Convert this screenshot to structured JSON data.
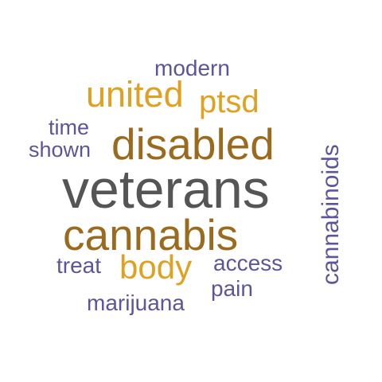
{
  "colors": {
    "grey": "#555555",
    "brown": "#9a6b1e",
    "gold": "#e0a020",
    "purple": "#5d559a"
  },
  "words": {
    "veterans": "veterans",
    "disabled": "disabled",
    "cannabis": "cannabis",
    "united": "united",
    "ptsd": "ptsd",
    "body": "body",
    "modern": "modern",
    "time": "time",
    "shown": "shown",
    "treat": "treat",
    "access": "access",
    "pain": "pain",
    "marijuana": "marijuana",
    "cannabinoids": "cannabinoids"
  }
}
